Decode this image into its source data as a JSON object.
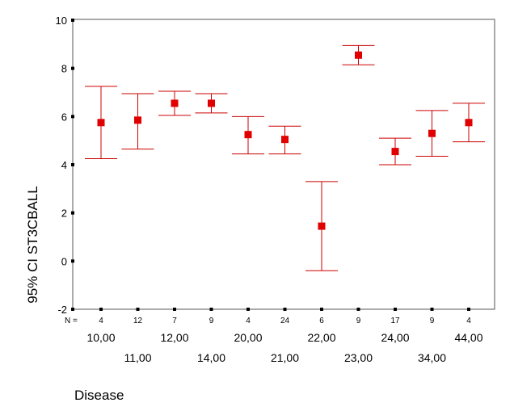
{
  "chart_data": {
    "type": "errorbar",
    "xlabel": "Disease",
    "ylabel": "95% CI ST3CBALL",
    "n_prefix": "N =",
    "ylim": [
      -2,
      10
    ],
    "yticks": [
      -2,
      0,
      2,
      4,
      6,
      8,
      10
    ],
    "grid": false,
    "categories": [
      "10,00",
      "11,00",
      "12,00",
      "14,00",
      "20,00",
      "21,00",
      "22,00",
      "23,00",
      "24,00",
      "34,00",
      "44,00"
    ],
    "n": [
      "4",
      "12",
      "7",
      "9",
      "4",
      "24",
      "6",
      "9",
      "17",
      "9",
      "4"
    ],
    "mean": [
      5.75,
      5.85,
      6.55,
      6.55,
      5.25,
      5.05,
      1.45,
      8.55,
      4.55,
      5.3,
      5.75
    ],
    "lower": [
      4.25,
      4.65,
      6.05,
      6.15,
      4.45,
      4.45,
      -0.4,
      8.15,
      4.0,
      4.35,
      4.95
    ],
    "upper": [
      7.25,
      6.95,
      7.05,
      6.95,
      6.0,
      5.6,
      3.3,
      8.95,
      5.1,
      6.25,
      6.55
    ],
    "marker_color": "#e00000",
    "bar_color": "#cc0000"
  }
}
